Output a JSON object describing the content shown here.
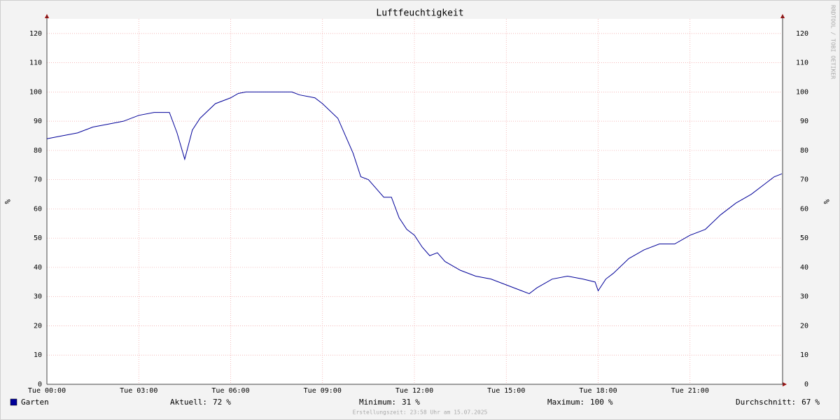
{
  "chart_data": {
    "type": "line",
    "title": "Luftfeuchtigkeit",
    "y_label": "%",
    "watermark": "RRDTOOL / TOBI OETIKER",
    "x": [
      0,
      0.5,
      1,
      1.5,
      2,
      2.5,
      3,
      3.5,
      4,
      4.25,
      4.5,
      4.75,
      5,
      5.5,
      6,
      6.25,
      6.5,
      8,
      8.25,
      8.75,
      9,
      9.5,
      9.75,
      10,
      10.25,
      10.5,
      10.75,
      11,
      11.25,
      11.5,
      11.75,
      12,
      12.25,
      12.5,
      12.75,
      13,
      13.5,
      14,
      14.5,
      15,
      15.5,
      15.75,
      16,
      16.5,
      17,
      17.5,
      17.9,
      18,
      18.25,
      18.5,
      19,
      19.5,
      20,
      20.5,
      21,
      21.5,
      22,
      22.5,
      23,
      23.5,
      23.75,
      24
    ],
    "series": [
      {
        "name": "Garten",
        "color": "#000099",
        "values": [
          84,
          85,
          86,
          88,
          89,
          90,
          92,
          93,
          93,
          86,
          77,
          87,
          91,
          96,
          98,
          99.5,
          100,
          100,
          99,
          98,
          96,
          91,
          85,
          79,
          71,
          70,
          67,
          64,
          64,
          57,
          53,
          51,
          47,
          44,
          45,
          42,
          39,
          37,
          36,
          34,
          32,
          31,
          33,
          36,
          37,
          36,
          35,
          32,
          36,
          38,
          43,
          46,
          48,
          48,
          51,
          53,
          58,
          62,
          65,
          69,
          71,
          72
        ]
      }
    ],
    "xlim": [
      0,
      24
    ],
    "xticks": [
      {
        "value": 0,
        "label": "Tue 00:00"
      },
      {
        "value": 3,
        "label": "Tue 03:00"
      },
      {
        "value": 6,
        "label": "Tue 06:00"
      },
      {
        "value": 9,
        "label": "Tue 09:00"
      },
      {
        "value": 12,
        "label": "Tue 12:00"
      },
      {
        "value": 15,
        "label": "Tue 15:00"
      },
      {
        "value": 18,
        "label": "Tue 18:00"
      },
      {
        "value": 21,
        "label": "Tue 21:00"
      }
    ],
    "ylim": [
      0,
      125
    ],
    "yticks": [
      0,
      10,
      20,
      30,
      40,
      50,
      60,
      70,
      80,
      90,
      100,
      110,
      120
    ],
    "grid": true,
    "stats": [
      {
        "label": "Aktuell:",
        "value": 72
      },
      {
        "label": "Minimum:",
        "value": 31
      },
      {
        "label": "Maximum:",
        "value": 100
      },
      {
        "label": "Durchschnitt:",
        "value": 67
      }
    ],
    "footer": "Erstellungszeit: 23:58 Uhr am 15.07.2025"
  }
}
